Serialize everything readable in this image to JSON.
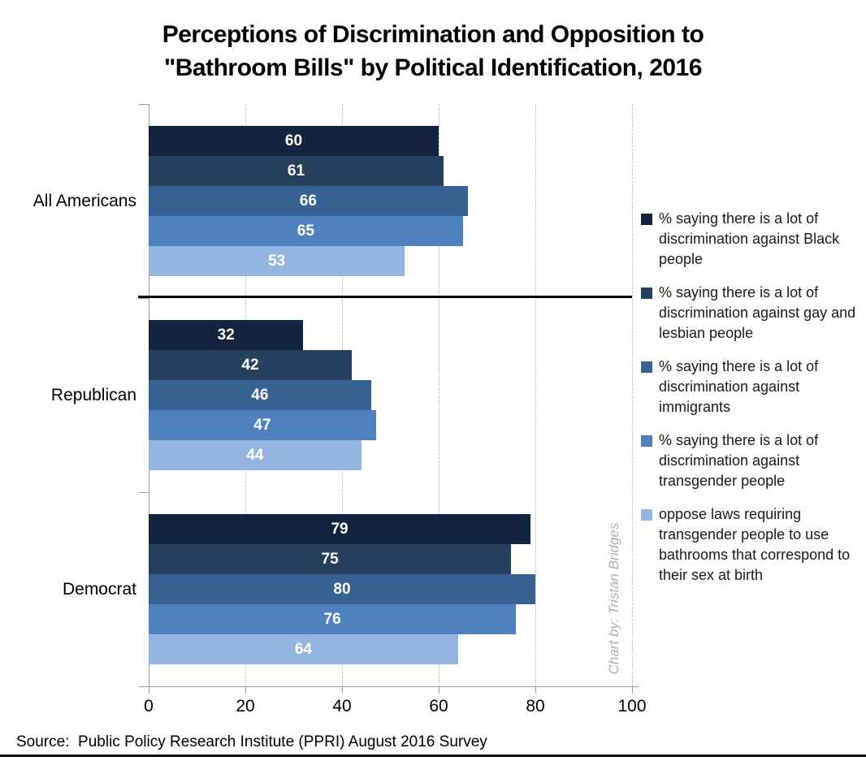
{
  "title": {
    "line1": "Perceptions of Discrimination and Opposition to",
    "line2": "\"Bathroom Bills\" by Political Identification, 2016"
  },
  "chart_data": {
    "type": "bar",
    "orientation": "horizontal",
    "title": "Perceptions of Discrimination and Opposition to \"Bathroom Bills\" by Political Identification, 2016",
    "categories": [
      "All Americans",
      "Republican",
      "Democrat"
    ],
    "series": [
      {
        "name": "% saying there is a lot of discrimination against Black people",
        "color": "#13243e",
        "values": [
          60,
          32,
          79
        ]
      },
      {
        "name": "% saying there is a lot of discrimination against gay and lesbian people",
        "color": "#27405e",
        "values": [
          61,
          42,
          75
        ]
      },
      {
        "name": "% saying there is a lot of discrimination against immigrants",
        "color": "#386292",
        "values": [
          66,
          46,
          80
        ]
      },
      {
        "name": "% saying there is a lot of discrimination against transgender people",
        "color": "#4e81bd",
        "values": [
          65,
          47,
          76
        ]
      },
      {
        "name": "oppose laws requiring transgender people to use bathrooms that correspond to their sex at birth",
        "color": "#93b5df",
        "values": [
          53,
          44,
          64
        ]
      }
    ],
    "xlim": [
      0,
      100
    ],
    "x_ticks": [
      0,
      20,
      40,
      60,
      80,
      100
    ],
    "grid": "vertical-dashed",
    "legend_position": "right",
    "bar_labels": true,
    "separator_after_category": "All Americans"
  },
  "credit": "Chart by: Tristan Bridges",
  "source": "Source:  Public Policy Research Institute (PPRI) August 2016 Survey"
}
